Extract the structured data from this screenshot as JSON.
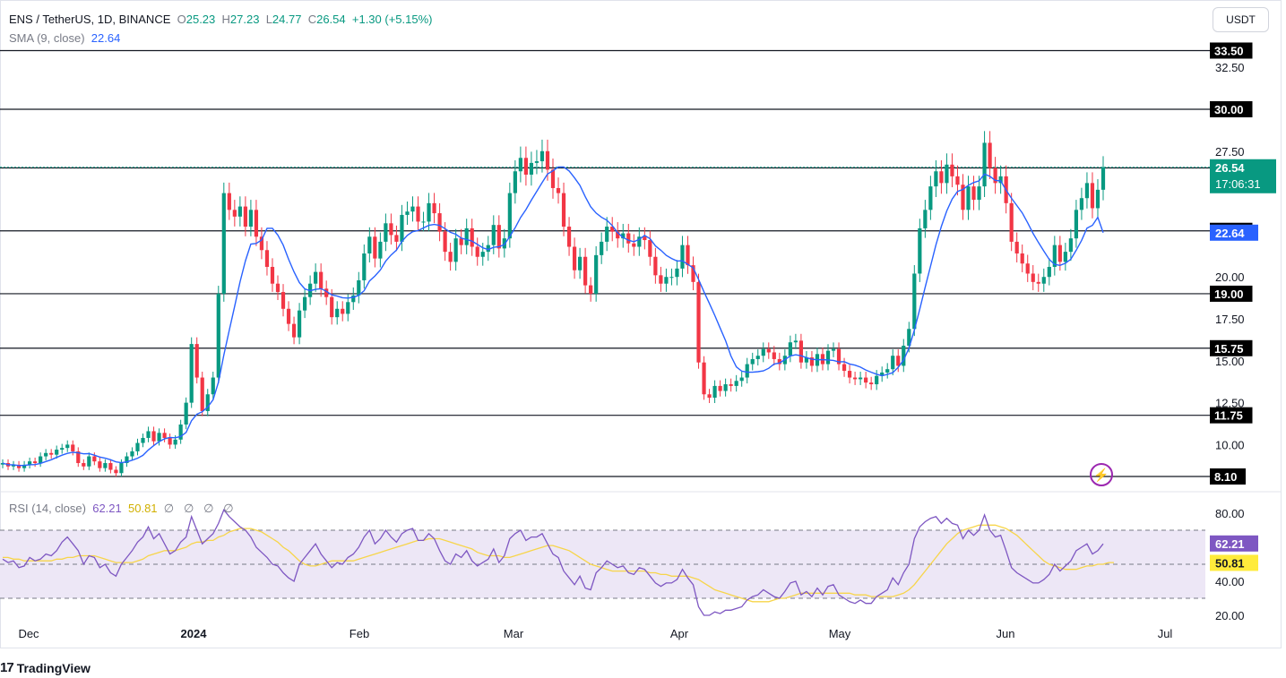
{
  "header": {
    "symbol": "ENS / TetherUS, 1D, BINANCE",
    "o_label": "O",
    "o_value": "25.23",
    "h_label": "H",
    "h_value": "27.23",
    "l_label": "L",
    "l_value": "24.77",
    "c_label": "C",
    "c_value": "26.54",
    "change": "+1.30 (+5.15%)",
    "sma_label": "SMA (9, close)",
    "sma_value": "22.64",
    "currency_button": "USDT"
  },
  "rsi_legend": {
    "label": "RSI (14, close)",
    "rsi_value": "62.21",
    "ma_value": "50.81",
    "extras": [
      "∅",
      "∅",
      "∅",
      "∅"
    ]
  },
  "brand": {
    "name": "TradingView"
  },
  "colors": {
    "up": "#089981",
    "down": "#f23645",
    "sma": "#2962ff",
    "rsi": "#7e57c2",
    "rsi_ma": "#f7d54a",
    "rsi_band": "#ede7f6",
    "level_line": "#131722",
    "current_price": "#089981"
  },
  "chart_data": [
    {
      "type": "candlestick",
      "title": "ENS / TetherUS, 1D, BINANCE",
      "ylim": [
        7.3,
        35.5
      ],
      "y_ticks": [
        "32.50",
        "27.50",
        "20.00",
        "17.50",
        "15.00",
        "12.50",
        "10.00"
      ],
      "x_ticks": [
        "Dec",
        "2024",
        "Feb",
        "Mar",
        "Apr",
        "May",
        "Jun",
        "Jul"
      ],
      "levels": [
        {
          "label": "33.50",
          "value": 33.5
        },
        {
          "label": "30.00",
          "value": 30.0
        },
        {
          "label": "26.50",
          "value": 26.5
        },
        {
          "label": "22.75",
          "value": 22.75
        },
        {
          "label": "19.00",
          "value": 19.0
        },
        {
          "label": "15.75",
          "value": 15.75
        },
        {
          "label": "11.75",
          "value": 11.75
        },
        {
          "label": "8.10",
          "value": 8.1
        }
      ],
      "current_price": {
        "label": "26.54",
        "value": 26.54,
        "countdown": "17:06:31"
      },
      "sma_tag": {
        "label": "22.64",
        "value": 22.64
      },
      "series": [
        {
          "name": "close",
          "values": [
            8.9,
            8.7,
            8.8,
            8.6,
            8.8,
            9.0,
            8.9,
            9.3,
            9.5,
            9.4,
            9.7,
            9.8,
            10.0,
            9.6,
            8.9,
            8.7,
            9.3,
            9.0,
            8.6,
            8.9,
            8.5,
            8.3,
            8.9,
            9.3,
            9.6,
            10.1,
            10.4,
            10.8,
            10.2,
            10.7,
            10.4,
            10.0,
            10.3,
            11.2,
            12.5,
            16.0,
            14.0,
            12.0,
            13.0,
            14.0,
            19.0,
            25.0,
            24.0,
            23.6,
            24.2,
            23.0,
            24.0,
            22.4,
            21.6,
            20.6,
            19.6,
            19.1,
            18.1,
            17.2,
            16.4,
            18.0,
            18.8,
            19.6,
            20.3,
            19.3,
            18.8,
            17.6,
            18.1,
            17.8,
            18.5,
            18.9,
            19.8,
            21.4,
            22.4,
            21.1,
            22.1,
            23.2,
            22.5,
            22.1,
            23.7,
            23.9,
            24.2,
            23.3,
            23.3,
            24.4,
            23.8,
            22.7,
            21.5,
            20.9,
            22.3,
            21.9,
            22.9,
            21.8,
            21.2,
            21.5,
            21.9,
            23.1,
            21.7,
            22.3,
            25.0,
            26.3,
            27.1,
            26.1,
            26.8,
            26.9,
            27.5,
            26.4,
            25.3,
            25.0,
            23.0,
            21.8,
            20.4,
            21.2,
            19.5,
            19.0,
            21.3,
            22.1,
            23.0,
            22.7,
            22.3,
            22.6,
            22.0,
            21.8,
            22.4,
            22.2,
            21.2,
            20.1,
            19.6,
            20.0,
            20.0,
            20.5,
            21.9,
            20.7,
            19.7,
            14.9,
            13.0,
            12.8,
            13.5,
            13.2,
            13.6,
            13.5,
            13.8,
            14.0,
            14.8,
            15.1,
            15.3,
            15.7,
            15.5,
            15.1,
            14.8,
            15.3,
            16.1,
            16.2,
            14.9,
            15.2,
            14.7,
            15.4,
            14.8,
            15.6,
            15.7,
            14.8,
            14.4,
            14.0,
            13.9,
            14.0,
            13.7,
            13.6,
            14.1,
            14.3,
            14.5,
            15.3,
            14.7,
            15.9,
            16.9,
            20.2,
            22.9,
            24.0,
            25.4,
            26.3,
            25.6,
            26.7,
            26.0,
            25.5,
            24.0,
            25.4,
            24.6,
            25.4,
            28.0,
            26.5,
            25.6,
            26.0,
            24.4,
            22.1,
            21.4,
            20.8,
            20.2,
            19.7,
            19.6,
            20.0,
            20.6,
            21.9,
            20.9,
            21.5,
            22.3,
            24.0,
            24.7,
            25.6,
            24.1,
            25.2,
            26.54
          ]
        },
        {
          "name": "SMA (9, close)",
          "values": [
            8.9,
            8.8,
            8.8,
            8.75,
            8.76,
            8.8,
            8.81,
            8.88,
            8.99,
            9.1,
            9.24,
            9.37,
            9.48,
            9.54,
            9.51,
            9.45,
            9.46,
            9.37,
            9.26,
            9.19,
            9.1,
            8.97,
            8.92,
            8.97,
            9.07,
            9.19,
            9.36,
            9.68,
            9.94,
            10.18,
            10.35,
            10.43,
            10.41,
            10.49,
            10.73,
            11.43,
            11.81,
            11.96,
            12.24,
            12.68,
            13.73,
            15.35,
            16.81,
            18.24,
            19.72,
            20.97,
            21.96,
            22.0,
            22.2,
            22.9,
            22.9,
            22.5,
            21.9,
            21.06,
            20.3,
            19.66,
            19.29,
            19.18,
            19.26,
            19.3,
            19.14,
            18.93,
            18.86,
            18.76,
            18.74,
            18.79,
            18.9,
            19.18,
            19.76,
            20.06,
            20.41,
            20.94,
            21.31,
            21.6,
            22.12,
            22.48,
            22.7,
            22.77,
            22.92,
            23.08,
            23.13,
            23.07,
            22.88,
            22.66,
            22.55,
            22.32,
            22.23,
            22.14,
            21.94,
            21.74,
            21.63,
            21.77,
            21.8,
            21.93,
            22.41,
            22.94,
            23.55,
            24.02,
            24.58,
            25.1,
            25.63,
            26.14,
            26.33,
            26.56,
            26.56,
            26.32,
            25.91,
            25.46,
            24.78,
            24.19,
            23.81,
            23.56,
            23.38,
            23.06,
            22.64,
            22.35,
            22.19,
            22.1,
            22.24,
            22.48,
            22.28,
            21.85,
            21.59,
            21.29,
            21.1,
            20.95,
            20.96,
            20.75,
            20.54,
            19.85,
            19.12,
            18.42,
            17.71,
            16.95,
            16.21,
            15.29,
            14.63,
            14.38,
            14.32,
            14.32,
            14.35,
            14.4,
            14.55,
            14.81,
            14.87,
            15.07,
            15.29,
            15.36,
            15.3,
            15.19,
            15.09,
            15.06,
            15.07,
            15.05,
            15.02,
            14.93,
            14.95,
            14.81,
            14.74,
            14.62,
            14.45,
            14.32,
            14.2,
            14.11,
            14.19,
            14.29,
            14.61,
            15.04,
            15.76,
            16.83,
            18.07,
            19.39,
            20.65,
            21.92,
            23.01,
            23.93,
            24.65,
            25.1,
            25.22,
            25.46,
            25.63,
            25.73,
            26.14,
            26.0,
            25.76,
            25.73,
            25.19,
            24.69,
            24.26,
            23.82,
            23.23,
            22.6,
            22.05,
            21.54,
            21.05,
            20.75,
            20.69,
            20.82,
            21.06,
            21.59,
            22.18,
            22.91,
            23.08,
            23.56,
            22.64
          ]
        }
      ]
    },
    {
      "type": "line",
      "title": "RSI (14, close)",
      "ylim": [
        20,
        80
      ],
      "y_ticks": [
        "80.00",
        "40.00",
        "20.00"
      ],
      "bands": [
        70,
        50,
        30
      ],
      "series": [
        {
          "name": "RSI",
          "values": [
            53,
            51,
            52,
            48,
            49,
            54,
            52,
            53,
            56,
            55,
            58,
            63,
            66,
            62,
            58,
            50,
            55,
            54,
            48,
            50,
            45,
            43,
            50,
            54,
            58,
            63,
            66,
            72,
            65,
            68,
            62,
            56,
            58,
            63,
            66,
            78,
            70,
            62,
            65,
            68,
            74,
            82,
            78,
            75,
            72,
            70,
            66,
            60,
            57,
            54,
            50,
            49,
            45,
            42,
            40,
            50,
            54,
            58,
            62,
            56,
            52,
            48,
            51,
            50,
            54,
            56,
            60,
            66,
            70,
            62,
            65,
            70,
            66,
            63,
            68,
            70,
            71,
            64,
            64,
            68,
            65,
            58,
            52,
            50,
            56,
            54,
            58,
            52,
            49,
            51,
            53,
            59,
            51,
            55,
            65,
            68,
            70,
            64,
            66,
            66,
            68,
            62,
            56,
            54,
            46,
            42,
            38,
            43,
            36,
            35,
            45,
            48,
            52,
            50,
            48,
            49,
            45,
            44,
            48,
            47,
            43,
            39,
            37,
            39,
            39,
            41,
            47,
            42,
            38,
            25,
            20,
            20,
            22,
            21,
            23,
            23,
            24,
            25,
            29,
            31,
            32,
            35,
            33,
            31,
            30,
            34,
            39,
            40,
            32,
            34,
            31,
            36,
            32,
            37,
            38,
            32,
            30,
            28,
            27,
            29,
            27,
            27,
            31,
            33,
            35,
            42,
            38,
            45,
            50,
            65,
            72,
            75,
            77,
            78,
            74,
            77,
            74,
            73,
            65,
            70,
            67,
            70,
            79,
            70,
            66,
            67,
            58,
            48,
            45,
            43,
            41,
            39,
            39,
            41,
            44,
            50,
            46,
            49,
            52,
            58,
            60,
            62,
            56,
            58,
            62
          ]
        },
        {
          "name": "RSI-based MA",
          "values": [
            54,
            54,
            53,
            53,
            52,
            52,
            52,
            52,
            52,
            52,
            53,
            53,
            54,
            54,
            55,
            55,
            55,
            55,
            54,
            53,
            52,
            51,
            51,
            51,
            51,
            52,
            53,
            55,
            56,
            57,
            58,
            58,
            58,
            59,
            60,
            62,
            63,
            63,
            64,
            64,
            66,
            67,
            69,
            70,
            71,
            71,
            71,
            70,
            69,
            67,
            65,
            63,
            60,
            58,
            55,
            52,
            50,
            49,
            49,
            50,
            51,
            52,
            52,
            52,
            52,
            52,
            53,
            54,
            55,
            56,
            57,
            58,
            59,
            60,
            61,
            62,
            63,
            64,
            64,
            65,
            65,
            65,
            64,
            63,
            62,
            61,
            60,
            59,
            57,
            56,
            55,
            55,
            55,
            54,
            54,
            55,
            56,
            57,
            58,
            59,
            60,
            61,
            61,
            60,
            59,
            58,
            56,
            54,
            52,
            50,
            49,
            48,
            47,
            46,
            46,
            46,
            46,
            46,
            46,
            46,
            45,
            45,
            44,
            44,
            43,
            43,
            43,
            43,
            42,
            41,
            39,
            37,
            35,
            34,
            33,
            32,
            31,
            30,
            29,
            28,
            28,
            28,
            28,
            29,
            30,
            30,
            31,
            32,
            33,
            33,
            33,
            33,
            33,
            33,
            33,
            33,
            33,
            33,
            32,
            32,
            32,
            31,
            31,
            31,
            31,
            31,
            32,
            33,
            35,
            38,
            42,
            46,
            50,
            54,
            58,
            62,
            65,
            68,
            70,
            71,
            72,
            73,
            73,
            73,
            73,
            72,
            71,
            69,
            67,
            64,
            61,
            58,
            55,
            52,
            50,
            49,
            48,
            47,
            47,
            47,
            48,
            49,
            49,
            50,
            50,
            51,
            51
          ]
        }
      ]
    }
  ]
}
